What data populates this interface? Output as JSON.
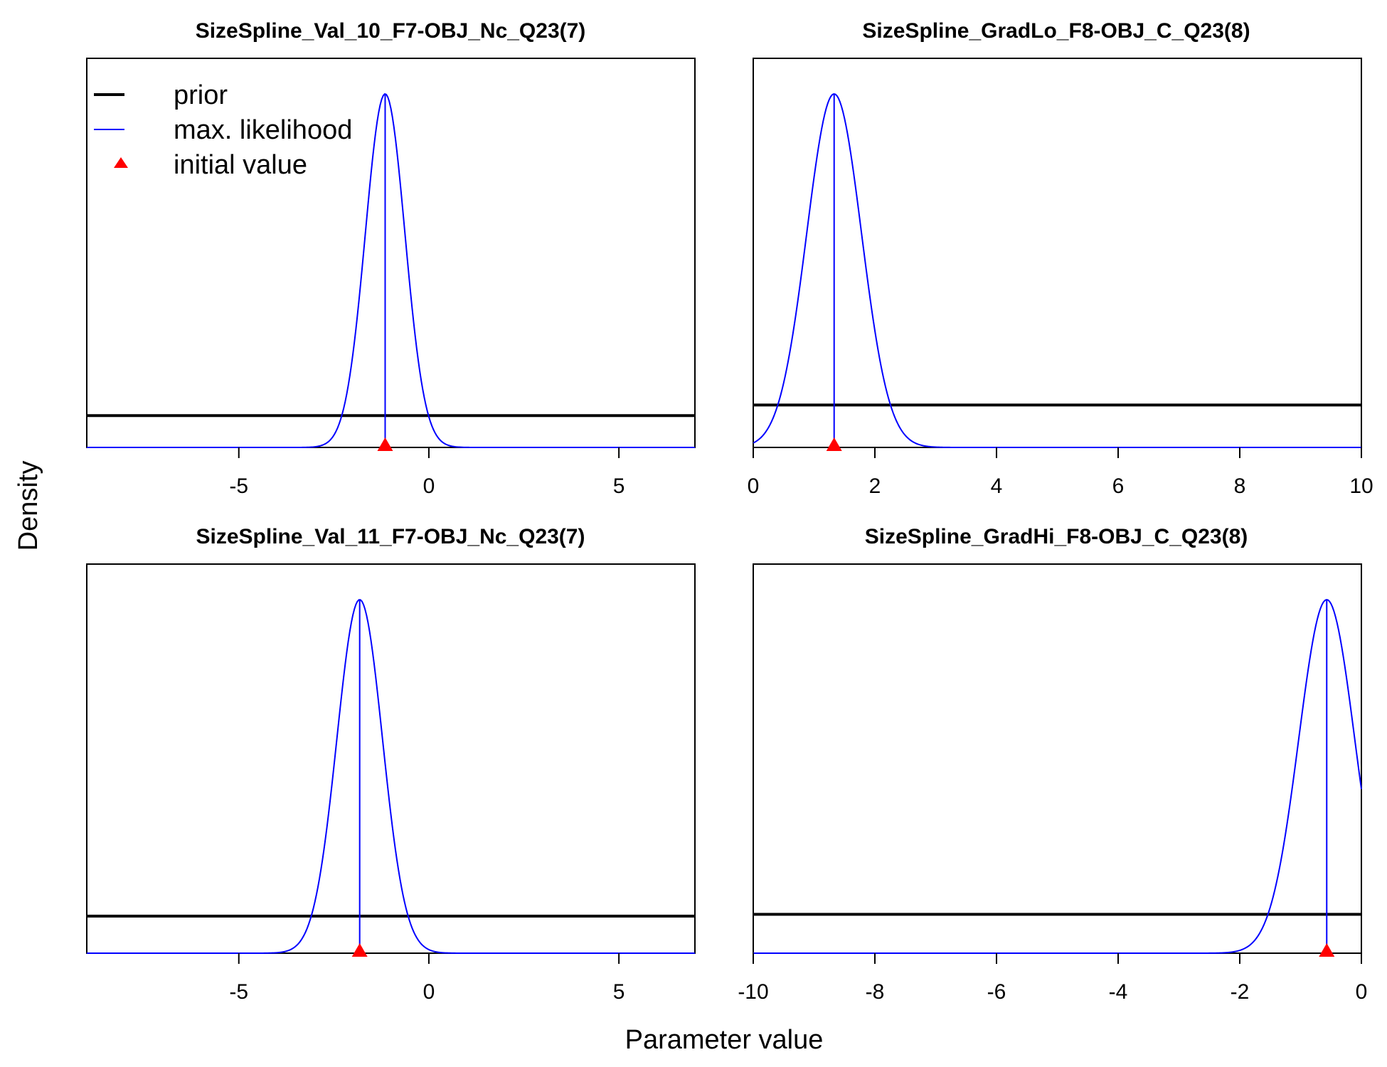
{
  "figure": {
    "xlabel": "Parameter value",
    "ylabel": "Density",
    "legend": {
      "placement": "top-left of first panel",
      "entries": [
        {
          "label": "prior",
          "color": "#000000",
          "type": "thick-line"
        },
        {
          "label": "max. likelihood",
          "color": "#0000ff",
          "type": "thin-line"
        },
        {
          "label": "initial value",
          "color": "#ff0000",
          "type": "triangle"
        }
      ]
    },
    "colors": {
      "prior": "#000000",
      "mle": "#0000ff",
      "initial": "#ff0000"
    }
  },
  "chart_data": [
    {
      "type": "line",
      "title": "SizeSpline_Val_10_F7-OBJ_Nc_Q23(7)",
      "xlim": [
        -9,
        7
      ],
      "ticks": [
        -5,
        0,
        5
      ],
      "tick_labels": [
        "-5",
        "0",
        "5"
      ],
      "prior_level": 0.09,
      "mle": {
        "mean": -1.15,
        "sd": 0.52
      },
      "initial_value": -1.15
    },
    {
      "type": "line",
      "title": "SizeSpline_GradLo_F8-OBJ_C_Q23(8)",
      "xlim": [
        0,
        10
      ],
      "ticks": [
        0,
        2,
        4,
        6,
        8,
        10
      ],
      "tick_labels": [
        "0",
        "2",
        "4",
        "6",
        "8",
        "10"
      ],
      "prior_level": 0.12,
      "mle": {
        "mean": 1.33,
        "sd": 0.45
      },
      "initial_value": 1.33
    },
    {
      "type": "line",
      "title": "SizeSpline_Val_11_F7-OBJ_Nc_Q23(7)",
      "xlim": [
        -9,
        7
      ],
      "ticks": [
        -5,
        0,
        5
      ],
      "tick_labels": [
        "-5",
        "0",
        "5"
      ],
      "prior_level": 0.105,
      "mle": {
        "mean": -1.82,
        "sd": 0.6
      },
      "initial_value": -1.82
    },
    {
      "type": "line",
      "title": "SizeSpline_GradHi_F8-OBJ_C_Q23(8)",
      "xlim": [
        -10,
        0
      ],
      "ticks": [
        -10,
        -8,
        -6,
        -4,
        -2,
        0
      ],
      "tick_labels": [
        "-10",
        "-8",
        "-6",
        "-4",
        "-2",
        "0"
      ],
      "prior_level": 0.11,
      "mle": {
        "mean": -0.57,
        "sd": 0.46
      },
      "initial_value": -0.57
    }
  ]
}
